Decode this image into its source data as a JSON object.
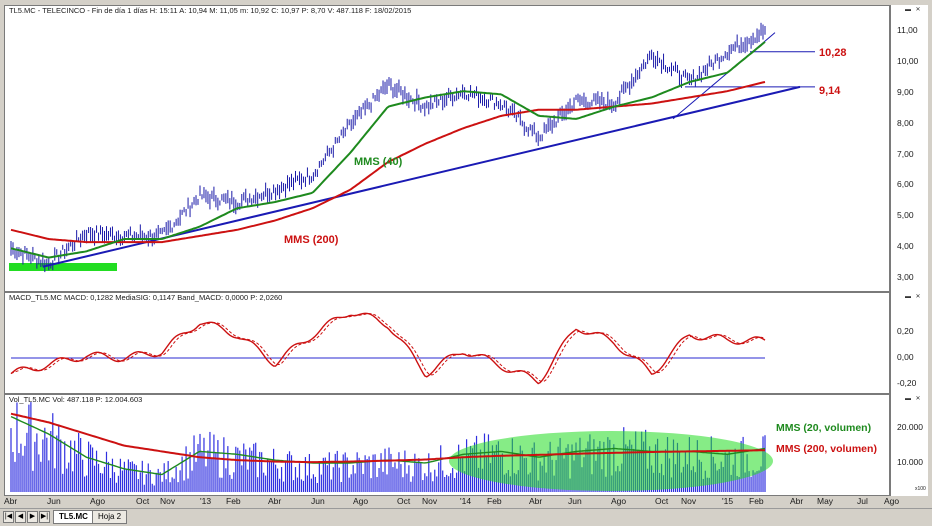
{
  "price_panel": {
    "header": "TL5.MC - TELECINCO - Fin de día 1 días  H: 15:11  A: 10,94  M: 11,05  m: 10,92  C: 10,97  P: 8,70  V: 487.118  F: 18/02/2015",
    "yticks": [
      "11,00",
      "10,00",
      "9,00",
      "8,00",
      "7,00",
      "6,00",
      "5,00",
      "4,00",
      "3,00"
    ],
    "annotations": {
      "mms40": "MMS (40)",
      "mms200": "MMS (200)",
      "level_high": "10,28",
      "level_trend": "9,14"
    }
  },
  "macd_panel": {
    "header": "MACD_TL5.MC  MACD: 0,1282  MediaSIG: 0,1147  Band_MACD: 0,0000  P: 2,0260",
    "yticks": [
      "0,20",
      "0,00",
      "-0,20"
    ]
  },
  "vol_panel": {
    "header": "Vol_TL5.MC  Vol: 487.118  P: 12.004.603",
    "yticks": [
      "20.000",
      "10.000"
    ],
    "scale_note": "x100",
    "annotations": {
      "mms20": "MMS (20, volumen)",
      "mms200": "MMS (200, volumen)"
    }
  },
  "x_axis": {
    "labels": [
      "Abr",
      "Jun",
      "Ago",
      "Oct",
      "Nov",
      "'13",
      "Feb",
      "Abr",
      "Jun",
      "Ago",
      "Oct",
      "Nov",
      "'14",
      "Feb",
      "Abr",
      "Jun",
      "Ago",
      "Oct",
      "Nov",
      "'15",
      "Feb",
      "Abr",
      "May",
      "Jul",
      "Ago"
    ]
  },
  "tabs": {
    "active": "TL5.MC",
    "other": "Hoja 2"
  },
  "colors": {
    "price_bars": "#1a1aa8",
    "mms40": "#1e8a1e",
    "mms200": "#cc1111",
    "trendline": "#1a1ab4",
    "macd": "#cc1111",
    "macd_zero": "#2a2ad0",
    "volume": "#3030e0",
    "highlight_zone": "#22dd22"
  },
  "chart_data": [
    {
      "type": "line",
      "title": "TL5.MC - TELECINCO",
      "x": [
        "Abr '12",
        "Jun '12",
        "Ago '12",
        "Oct '12",
        "Nov '12",
        "Ene '13",
        "Feb '13",
        "Abr '13",
        "Jun '13",
        "Ago '13",
        "Oct '13",
        "Nov '13",
        "Ene '14",
        "Feb '14",
        "Abr '14",
        "Jun '14",
        "Ago '14",
        "Oct '14",
        "Nov '14",
        "Ene '15",
        "Feb '15"
      ],
      "series": [
        {
          "name": "TL5.MC",
          "values": [
            3.9,
            3.4,
            4.4,
            4.3,
            4.3,
            5.6,
            5.4,
            5.8,
            6.3,
            7.9,
            9.2,
            8.5,
            9.0,
            8.6,
            7.5,
            8.7,
            8.6,
            10.2,
            9.3,
            10.3,
            10.97
          ]
        },
        {
          "name": "MMS (40)",
          "values": [
            3.9,
            3.6,
            3.8,
            4.2,
            4.2,
            4.6,
            5.2,
            5.4,
            5.7,
            7.0,
            8.5,
            8.8,
            9.0,
            8.9,
            8.2,
            8.1,
            8.5,
            8.8,
            9.3,
            9.6,
            10.6
          ]
        },
        {
          "name": "MMS (200)",
          "values": [
            4.5,
            4.2,
            4.1,
            4.1,
            4.1,
            4.3,
            4.5,
            4.8,
            5.2,
            5.8,
            6.7,
            7.3,
            7.8,
            8.2,
            8.4,
            8.4,
            8.5,
            8.6,
            8.8,
            9.0,
            9.3
          ]
        }
      ],
      "trendline": {
        "from": [
          "Jun '12",
          3.3
        ],
        "to": [
          "Feb '15",
          9.14
        ]
      },
      "levels": [
        10.28,
        9.14
      ],
      "ylim": [
        2.6,
        11.4
      ],
      "ylabel": ""
    },
    {
      "type": "line",
      "title": "MACD_TL5.MC",
      "x": [
        "Abr '12",
        "Jun '12",
        "Ago '12",
        "Oct '12",
        "Nov '12",
        "Ene '13",
        "Feb '13",
        "Abr '13",
        "Jun '13",
        "Ago '13",
        "Oct '13",
        "Nov '13",
        "Ene '14",
        "Feb '14",
        "Abr '14",
        "Jun '14",
        "Ago '14",
        "Oct '14",
        "Nov '14",
        "Ene '15",
        "Feb '15"
      ],
      "series": [
        {
          "name": "MACD",
          "values": [
            -0.12,
            -0.05,
            0.02,
            0.0,
            0.05,
            0.28,
            0.18,
            -0.04,
            0.18,
            0.36,
            0.26,
            -0.12,
            0.06,
            -0.06,
            -0.18,
            0.24,
            0.12,
            -0.12,
            0.18,
            0.14,
            0.13
          ]
        },
        {
          "name": "MediaSIG",
          "values": [
            -0.1,
            -0.06,
            0.0,
            0.01,
            0.04,
            0.25,
            0.2,
            -0.02,
            0.15,
            0.33,
            0.27,
            -0.08,
            0.04,
            -0.04,
            -0.15,
            0.2,
            0.14,
            -0.08,
            0.15,
            0.13,
            0.11
          ]
        }
      ],
      "ylim": [
        -0.25,
        0.4
      ]
    },
    {
      "type": "bar",
      "title": "Vol_TL5.MC",
      "x": [
        "Abr '12",
        "Jun '12",
        "Ago '12",
        "Oct '12",
        "Nov '12",
        "Ene '13",
        "Feb '13",
        "Abr '13",
        "Jun '13",
        "Ago '13",
        "Oct '13",
        "Nov '13",
        "Ene '14",
        "Feb '14",
        "Abr '14",
        "Jun '14",
        "Ago '14",
        "Oct '14",
        "Nov '14",
        "Ene '15",
        "Feb '15"
      ],
      "series": [
        {
          "name": "Vol",
          "values": [
            26000,
            22000,
            14000,
            9000,
            7000,
            16000,
            14000,
            12000,
            10000,
            11000,
            12000,
            11000,
            14000,
            16000,
            13000,
            15000,
            17000,
            16000,
            15000,
            14000,
            15000
          ]
        },
        {
          "name": "MMS (20, volumen)",
          "values": [
            26000,
            20000,
            12000,
            8000,
            6000,
            14000,
            13000,
            11000,
            10000,
            10000,
            11000,
            10000,
            13000,
            14000,
            12000,
            14000,
            15000,
            14000,
            14000,
            13000,
            15000
          ]
        },
        {
          "name": "MMS (200, volumen)",
          "values": [
            27000,
            24000,
            20000,
            16000,
            14000,
            12000,
            11000,
            10500,
            10300,
            10500,
            10800,
            11200,
            12000,
            12500,
            12800,
            13200,
            13500,
            13800,
            14000,
            14200,
            14400
          ]
        }
      ],
      "ylim": [
        0,
        28000
      ]
    }
  ]
}
